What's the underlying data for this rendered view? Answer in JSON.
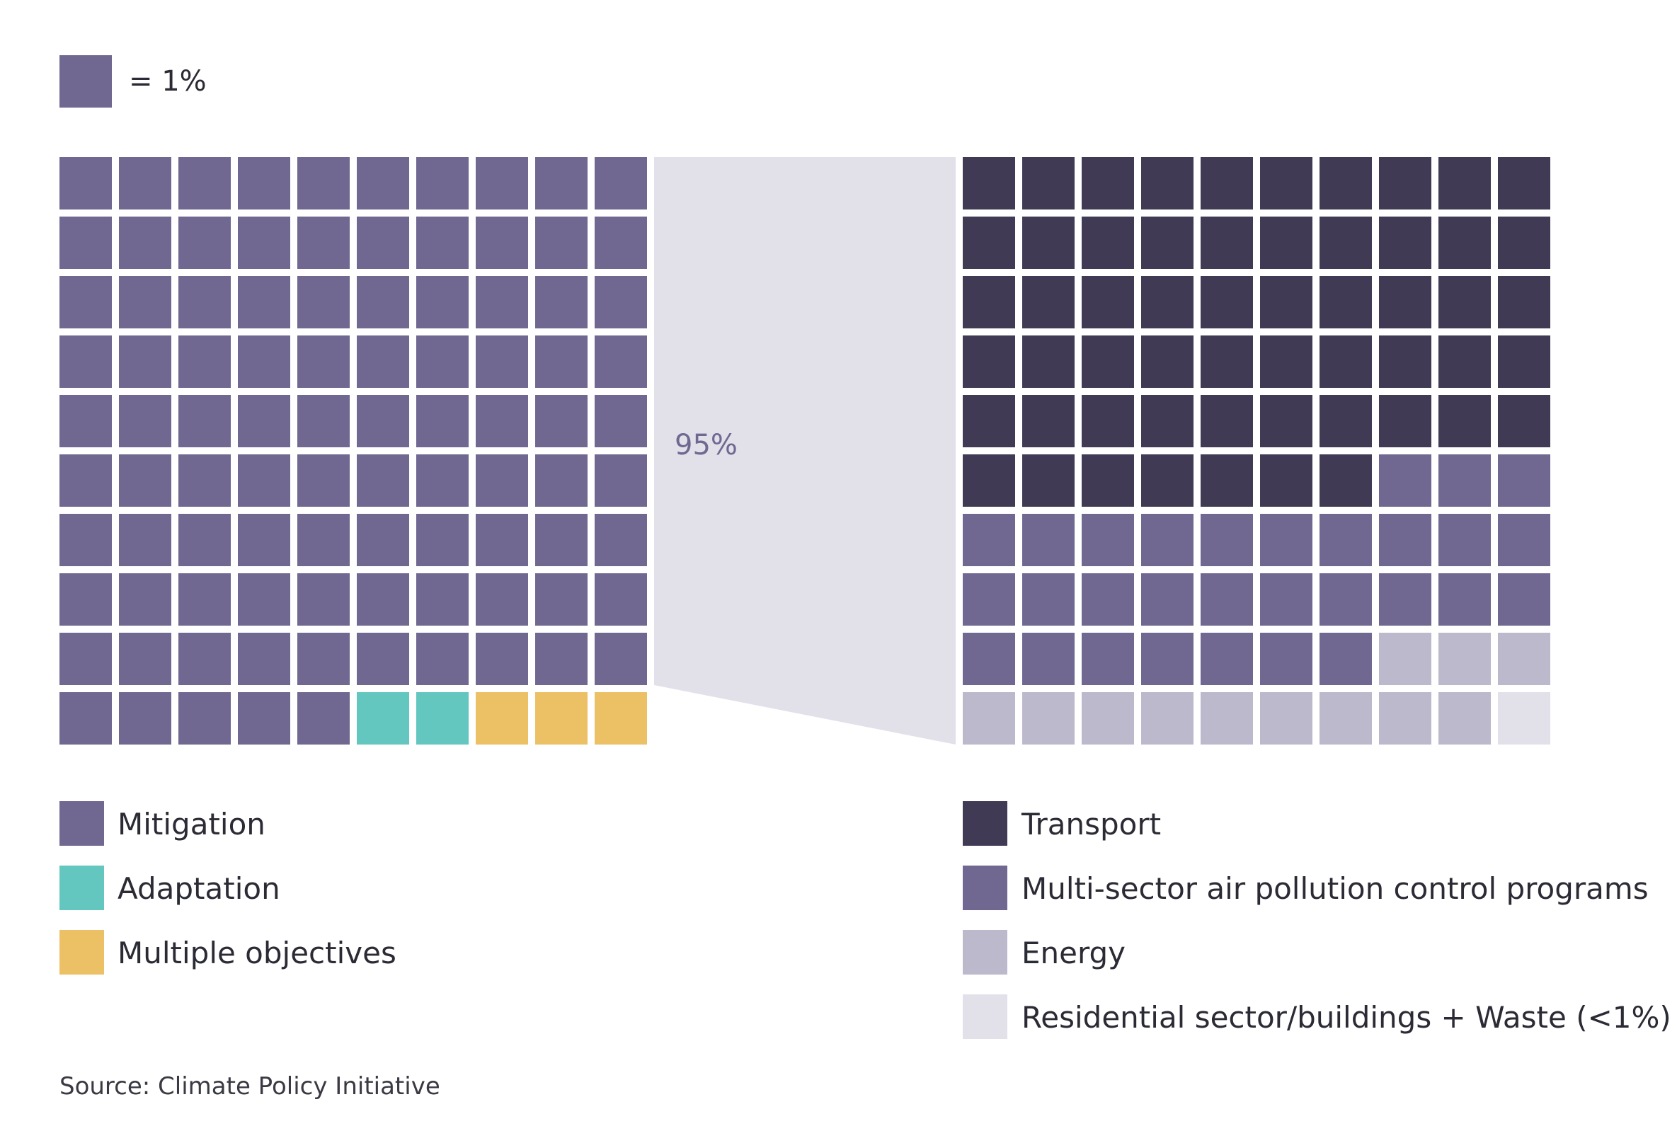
{
  "scale_legend": {
    "label": "= 1%",
    "color": "#706891"
  },
  "chart_data": [
    {
      "type": "waffle",
      "title": "",
      "unit": "1%",
      "grid": [
        10,
        10
      ],
      "series": [
        {
          "name": "Mitigation",
          "value": 95,
          "color": "#706891"
        },
        {
          "name": "Adaptation",
          "value": 2,
          "color": "#63c7bf"
        },
        {
          "name": "Multiple objectives",
          "value": 3,
          "color": "#ecc065"
        }
      ]
    },
    {
      "type": "waffle",
      "title": "",
      "unit": "1%",
      "grid": [
        10,
        10
      ],
      "breakdown_of": "Mitigation",
      "breakdown_label": "95%",
      "series": [
        {
          "name": "Transport",
          "value": 57,
          "color": "#403a55"
        },
        {
          "name": "Multi-sector air pollution control programs",
          "value": 30,
          "color": "#706891"
        },
        {
          "name": "Energy",
          "value": 12,
          "color": "#bdb9cc"
        },
        {
          "name": "Residential sector/buildings + Waste (<1%)",
          "value": 1,
          "color": "#e2e1ea"
        }
      ]
    }
  ],
  "connector_color": "#e2e1ea",
  "source": "Source: Climate Policy Initiative"
}
